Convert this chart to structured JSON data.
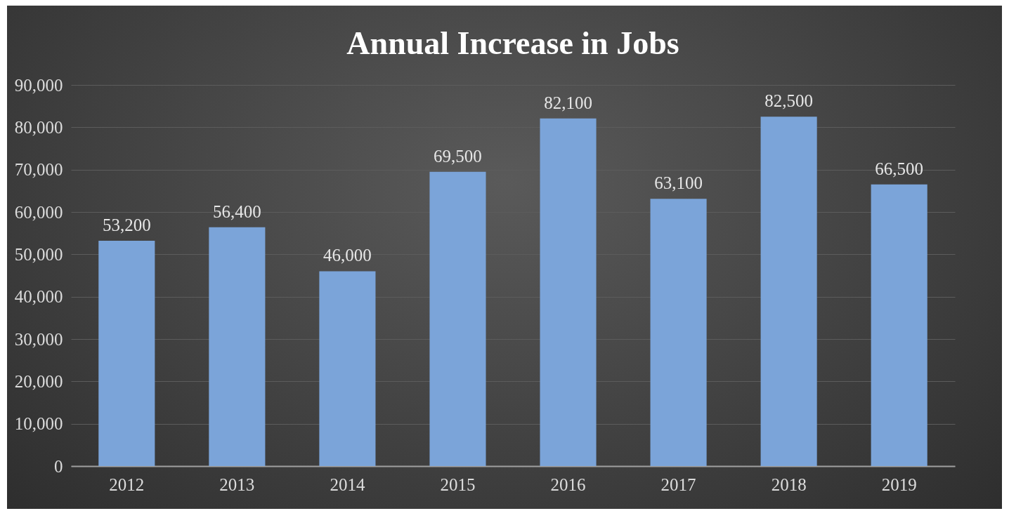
{
  "chart_data": {
    "type": "bar",
    "title": "Annual Increase in Jobs",
    "categories": [
      "2012",
      "2013",
      "2014",
      "2015",
      "2016",
      "2017",
      "2018",
      "2019"
    ],
    "values": [
      53200,
      56400,
      46000,
      69500,
      82100,
      63100,
      82500,
      66500
    ],
    "value_labels": [
      "53,200",
      "56,400",
      "46,000",
      "69,500",
      "82,100",
      "63,100",
      "82,500",
      "66,500"
    ],
    "color": "#7ba4d9",
    "ylim": [
      0,
      90000
    ],
    "yticks": [
      {
        "value": 0,
        "label": "0"
      },
      {
        "value": 10000,
        "label": "10,000"
      },
      {
        "value": 20000,
        "label": "20,000"
      },
      {
        "value": 30000,
        "label": "30,000"
      },
      {
        "value": 40000,
        "label": "40,000"
      },
      {
        "value": 50000,
        "label": "50,000"
      },
      {
        "value": 60000,
        "label": "60,000"
      },
      {
        "value": 70000,
        "label": "70,000"
      },
      {
        "value": 80000,
        "label": "80,000"
      },
      {
        "value": 90000,
        "label": "90,000"
      }
    ],
    "grid": "y"
  }
}
